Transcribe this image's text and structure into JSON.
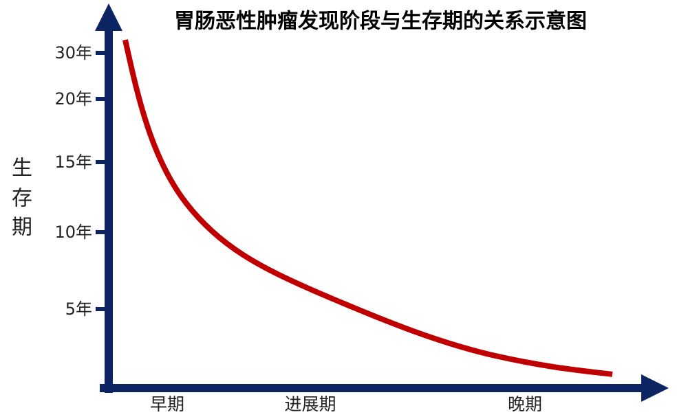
{
  "header": {
    "title": "胃肠恶性肿瘤发现阶段与生存期的关系示意图"
  },
  "y_axis": {
    "label": [
      "生",
      "存",
      "期"
    ],
    "ticks": [
      "30年",
      "20年",
      "15年",
      "10年",
      "5年"
    ]
  },
  "x_axis": {
    "categories": [
      "早期",
      "进展期",
      "晚期"
    ]
  }
}
